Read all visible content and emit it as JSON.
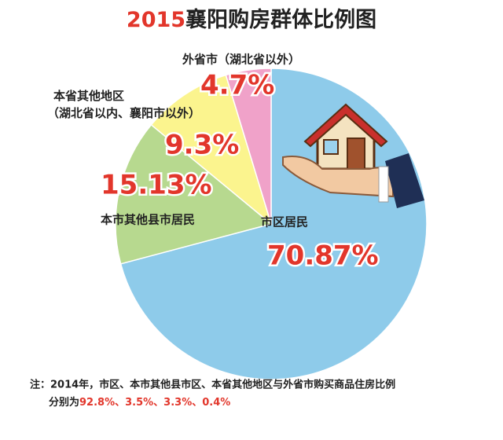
{
  "chart_data": {
    "type": "pie",
    "title_year": "2015",
    "title": "襄阳购房群体比例图",
    "categories": [
      "市区居民",
      "本市其他县市居民",
      "本省其他地区（湖北省以内、襄阳市以外）",
      "外省市（湖北省以外）"
    ],
    "values": [
      70.87,
      15.13,
      9.3,
      4.7
    ],
    "value_labels": [
      "70.87%",
      "15.13%",
      "9.3%",
      "4.7%"
    ],
    "colors": [
      "#8ecbea",
      "#b7d98f",
      "#fbf48e",
      "#f0a2c9"
    ],
    "note": {
      "line1": "注：2014年，市区、本市其他县市区、本省其他地区与外省市购买商品住房比例",
      "line2": "分别为",
      "figures": "92.8%、3.5%、3.3%、0.4%"
    }
  }
}
